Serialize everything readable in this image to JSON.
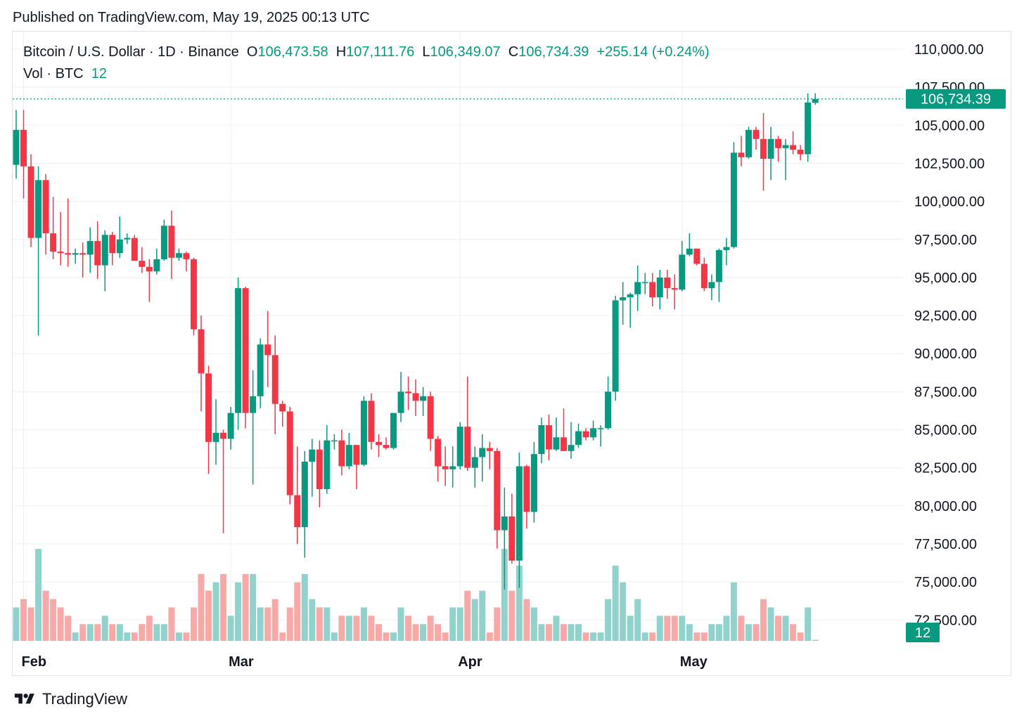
{
  "header": {
    "published": "Published on TradingView.com, May 19, 2025 00:13 UTC"
  },
  "legend": {
    "symbol": "Bitcoin / U.S. Dollar · 1D · Binance",
    "open_label": "O",
    "open": "106,473.58",
    "high_label": "H",
    "high": "107,111.76",
    "low_label": "L",
    "low": "106,349.07",
    "close_label": "C",
    "close": "106,734.39",
    "change": "+255.14 (+0.24%)",
    "vol_label": "Vol · BTC",
    "vol": "12"
  },
  "price_badge": "106,734.39",
  "volume_badge": "12",
  "footer": {
    "brand": "TradingView"
  },
  "colors": {
    "up": "#089981",
    "down": "#f23645",
    "up_vol": "#92d2cc",
    "down_vol": "#f7a9a7",
    "grid": "#eef0f3",
    "axis_text": "#131722"
  },
  "chart_data": {
    "type": "candlestick",
    "ylim": [
      70000,
      110000
    ],
    "y_ticks": [
      "110,000.00",
      "107,500.00",
      "105,000.00",
      "102,500.00",
      "100,000.00",
      "97,500.00",
      "95,000.00",
      "92,500.00",
      "90,000.00",
      "87,500.00",
      "85,000.00",
      "82,500.00",
      "80,000.00",
      "77,500.00",
      "75,000.00",
      "72,500.00"
    ],
    "x_labels": [
      {
        "label": "Feb",
        "date": "2025-02-01"
      },
      {
        "label": "Mar",
        "date": "2025-03-01"
      },
      {
        "label": "Apr",
        "date": "2025-04-01"
      },
      {
        "label": "May",
        "date": "2025-05-01"
      }
    ],
    "last_close": 106734.39,
    "candles": [
      {
        "date": "2025-01-31",
        "o": 102400,
        "h": 106000,
        "l": 101500,
        "c": 104700,
        "v": 4
      },
      {
        "date": "2025-02-01",
        "o": 104700,
        "h": 106000,
        "l": 100200,
        "c": 102300,
        "v": 5
      },
      {
        "date": "2025-02-02",
        "o": 102300,
        "h": 103100,
        "l": 97000,
        "c": 97600,
        "v": 4
      },
      {
        "date": "2025-02-03",
        "o": 97600,
        "h": 102300,
        "l": 91200,
        "c": 101400,
        "v": 11
      },
      {
        "date": "2025-02-04",
        "o": 101400,
        "h": 101800,
        "l": 96500,
        "c": 97900,
        "v": 6
      },
      {
        "date": "2025-02-05",
        "o": 97900,
        "h": 100300,
        "l": 96200,
        "c": 96700,
        "v": 5
      },
      {
        "date": "2025-02-06",
        "o": 96700,
        "h": 99300,
        "l": 95800,
        "c": 96600,
        "v": 4
      },
      {
        "date": "2025-02-07",
        "o": 96600,
        "h": 100200,
        "l": 95700,
        "c": 96500,
        "v": 3
      },
      {
        "date": "2025-02-08",
        "o": 96500,
        "h": 96900,
        "l": 95900,
        "c": 96600,
        "v": 1
      },
      {
        "date": "2025-02-09",
        "o": 96600,
        "h": 97300,
        "l": 95000,
        "c": 96500,
        "v": 2
      },
      {
        "date": "2025-02-10",
        "o": 96500,
        "h": 98300,
        "l": 95300,
        "c": 97400,
        "v": 2
      },
      {
        "date": "2025-02-11",
        "o": 97400,
        "h": 98700,
        "l": 94900,
        "c": 95800,
        "v": 2
      },
      {
        "date": "2025-02-12",
        "o": 95800,
        "h": 98100,
        "l": 94100,
        "c": 97800,
        "v": 3
      },
      {
        "date": "2025-02-13",
        "o": 97800,
        "h": 98000,
        "l": 95800,
        "c": 96600,
        "v": 2
      },
      {
        "date": "2025-02-14",
        "o": 96600,
        "h": 99000,
        "l": 96300,
        "c": 97500,
        "v": 2
      },
      {
        "date": "2025-02-15",
        "o": 97500,
        "h": 97900,
        "l": 97200,
        "c": 97600,
        "v": 1
      },
      {
        "date": "2025-02-16",
        "o": 97600,
        "h": 97800,
        "l": 96100,
        "c": 96100,
        "v": 1
      },
      {
        "date": "2025-02-17",
        "o": 96100,
        "h": 97000,
        "l": 95300,
        "c": 95700,
        "v": 2
      },
      {
        "date": "2025-02-18",
        "o": 95700,
        "h": 96200,
        "l": 93400,
        "c": 95400,
        "v": 3
      },
      {
        "date": "2025-02-19",
        "o": 95400,
        "h": 96900,
        "l": 95200,
        "c": 96200,
        "v": 2
      },
      {
        "date": "2025-02-20",
        "o": 96200,
        "h": 98800,
        "l": 96100,
        "c": 98400,
        "v": 2
      },
      {
        "date": "2025-02-21",
        "o": 98400,
        "h": 99400,
        "l": 94900,
        "c": 96300,
        "v": 4
      },
      {
        "date": "2025-02-22",
        "o": 96300,
        "h": 96900,
        "l": 96100,
        "c": 96600,
        "v": 1
      },
      {
        "date": "2025-02-23",
        "o": 96600,
        "h": 96700,
        "l": 95400,
        "c": 96200,
        "v": 1
      },
      {
        "date": "2025-02-24",
        "o": 96200,
        "h": 96300,
        "l": 91200,
        "c": 91600,
        "v": 4
      },
      {
        "date": "2025-02-25",
        "o": 91600,
        "h": 92500,
        "l": 86200,
        "c": 88700,
        "v": 8
      },
      {
        "date": "2025-02-26",
        "o": 88700,
        "h": 89200,
        "l": 82100,
        "c": 84200,
        "v": 6
      },
      {
        "date": "2025-02-27",
        "o": 84200,
        "h": 87000,
        "l": 82700,
        "c": 84800,
        "v": 7
      },
      {
        "date": "2025-02-28",
        "o": 84800,
        "h": 85000,
        "l": 78200,
        "c": 84400,
        "v": 8
      },
      {
        "date": "2025-03-01",
        "o": 84400,
        "h": 86500,
        "l": 83700,
        "c": 86100,
        "v": 3
      },
      {
        "date": "2025-03-02",
        "o": 86100,
        "h": 95000,
        "l": 85000,
        "c": 94300,
        "v": 7
      },
      {
        "date": "2025-03-03",
        "o": 94300,
        "h": 94400,
        "l": 85100,
        "c": 86100,
        "v": 8
      },
      {
        "date": "2025-03-04",
        "o": 86100,
        "h": 88900,
        "l": 81400,
        "c": 87200,
        "v": 8
      },
      {
        "date": "2025-03-05",
        "o": 87200,
        "h": 91000,
        "l": 86400,
        "c": 90600,
        "v": 4
      },
      {
        "date": "2025-03-06",
        "o": 90600,
        "h": 92800,
        "l": 87800,
        "c": 89900,
        "v": 4
      },
      {
        "date": "2025-03-07",
        "o": 89900,
        "h": 91200,
        "l": 84700,
        "c": 86700,
        "v": 5
      },
      {
        "date": "2025-03-08",
        "o": 86700,
        "h": 86900,
        "l": 85200,
        "c": 86200,
        "v": 1
      },
      {
        "date": "2025-03-09",
        "o": 86200,
        "h": 86500,
        "l": 80100,
        "c": 80700,
        "v": 4
      },
      {
        "date": "2025-03-10",
        "o": 80700,
        "h": 83900,
        "l": 77500,
        "c": 78600,
        "v": 7
      },
      {
        "date": "2025-03-11",
        "o": 78600,
        "h": 83600,
        "l": 76600,
        "c": 82900,
        "v": 8
      },
      {
        "date": "2025-03-12",
        "o": 82900,
        "h": 84400,
        "l": 80600,
        "c": 83700,
        "v": 5
      },
      {
        "date": "2025-03-13",
        "o": 83700,
        "h": 84300,
        "l": 79900,
        "c": 81100,
        "v": 4
      },
      {
        "date": "2025-03-14",
        "o": 81100,
        "h": 85300,
        "l": 80800,
        "c": 84300,
        "v": 4
      },
      {
        "date": "2025-03-15",
        "o": 84300,
        "h": 84700,
        "l": 83700,
        "c": 84300,
        "v": 1
      },
      {
        "date": "2025-03-16",
        "o": 84300,
        "h": 85000,
        "l": 82000,
        "c": 82600,
        "v": 3
      },
      {
        "date": "2025-03-17",
        "o": 82600,
        "h": 84800,
        "l": 82400,
        "c": 84000,
        "v": 3
      },
      {
        "date": "2025-03-18",
        "o": 84000,
        "h": 84000,
        "l": 81100,
        "c": 82700,
        "v": 3
      },
      {
        "date": "2025-03-19",
        "o": 82700,
        "h": 87200,
        "l": 82600,
        "c": 86900,
        "v": 4
      },
      {
        "date": "2025-03-20",
        "o": 86900,
        "h": 87400,
        "l": 83700,
        "c": 84200,
        "v": 3
      },
      {
        "date": "2025-03-21",
        "o": 84200,
        "h": 84700,
        "l": 83200,
        "c": 84000,
        "v": 2
      },
      {
        "date": "2025-03-22",
        "o": 84000,
        "h": 84500,
        "l": 83700,
        "c": 83800,
        "v": 1
      },
      {
        "date": "2025-03-23",
        "o": 83800,
        "h": 86100,
        "l": 83700,
        "c": 86100,
        "v": 1
      },
      {
        "date": "2025-03-24",
        "o": 86100,
        "h": 88800,
        "l": 85500,
        "c": 87500,
        "v": 4
      },
      {
        "date": "2025-03-25",
        "o": 87500,
        "h": 88500,
        "l": 86300,
        "c": 87400,
        "v": 3
      },
      {
        "date": "2025-03-26",
        "o": 87400,
        "h": 88300,
        "l": 85900,
        "c": 86900,
        "v": 2
      },
      {
        "date": "2025-03-27",
        "o": 86900,
        "h": 87800,
        "l": 85900,
        "c": 87200,
        "v": 2
      },
      {
        "date": "2025-03-28",
        "o": 87200,
        "h": 87500,
        "l": 83600,
        "c": 84400,
        "v": 3
      },
      {
        "date": "2025-03-29",
        "o": 84400,
        "h": 84600,
        "l": 81600,
        "c": 82600,
        "v": 2
      },
      {
        "date": "2025-03-30",
        "o": 82600,
        "h": 83900,
        "l": 81300,
        "c": 82400,
        "v": 1
      },
      {
        "date": "2025-03-31",
        "o": 82400,
        "h": 83900,
        "l": 81200,
        "c": 82600,
        "v": 4
      },
      {
        "date": "2025-04-01",
        "o": 82600,
        "h": 85500,
        "l": 82400,
        "c": 85200,
        "v": 4
      },
      {
        "date": "2025-04-02",
        "o": 85200,
        "h": 88500,
        "l": 82300,
        "c": 82500,
        "v": 6
      },
      {
        "date": "2025-04-03",
        "o": 82500,
        "h": 83900,
        "l": 81200,
        "c": 83200,
        "v": 5
      },
      {
        "date": "2025-04-04",
        "o": 83200,
        "h": 84700,
        "l": 81600,
        "c": 83800,
        "v": 6
      },
      {
        "date": "2025-04-05",
        "o": 83800,
        "h": 84200,
        "l": 82400,
        "c": 83600,
        "v": 1
      },
      {
        "date": "2025-04-06",
        "o": 83600,
        "h": 83800,
        "l": 77200,
        "c": 78400,
        "v": 4
      },
      {
        "date": "2025-04-07",
        "o": 78400,
        "h": 81200,
        "l": 74500,
        "c": 79300,
        "v": 11
      },
      {
        "date": "2025-04-08",
        "o": 79300,
        "h": 80800,
        "l": 76200,
        "c": 76400,
        "v": 6
      },
      {
        "date": "2025-04-09",
        "o": 76400,
        "h": 83500,
        "l": 74600,
        "c": 82600,
        "v": 9
      },
      {
        "date": "2025-04-10",
        "o": 82600,
        "h": 82700,
        "l": 78500,
        "c": 79600,
        "v": 5
      },
      {
        "date": "2025-04-11",
        "o": 79600,
        "h": 84200,
        "l": 78900,
        "c": 83400,
        "v": 4
      },
      {
        "date": "2025-04-12",
        "o": 83400,
        "h": 85800,
        "l": 82800,
        "c": 85300,
        "v": 2
      },
      {
        "date": "2025-04-13",
        "o": 85300,
        "h": 86000,
        "l": 83000,
        "c": 83700,
        "v": 2
      },
      {
        "date": "2025-04-14",
        "o": 83700,
        "h": 85800,
        "l": 83600,
        "c": 84500,
        "v": 3
      },
      {
        "date": "2025-04-15",
        "o": 84500,
        "h": 86400,
        "l": 83600,
        "c": 83600,
        "v": 2
      },
      {
        "date": "2025-04-16",
        "o": 83600,
        "h": 85500,
        "l": 83100,
        "c": 84000,
        "v": 2
      },
      {
        "date": "2025-04-17",
        "o": 84000,
        "h": 85400,
        "l": 83800,
        "c": 84900,
        "v": 2
      },
      {
        "date": "2025-04-18",
        "o": 84900,
        "h": 85100,
        "l": 84300,
        "c": 84500,
        "v": 1
      },
      {
        "date": "2025-04-19",
        "o": 84500,
        "h": 85600,
        "l": 84300,
        "c": 85100,
        "v": 1
      },
      {
        "date": "2025-04-20",
        "o": 85100,
        "h": 85300,
        "l": 83900,
        "c": 85100,
        "v": 1
      },
      {
        "date": "2025-04-21",
        "o": 85100,
        "h": 88500,
        "l": 85000,
        "c": 87500,
        "v": 5
      },
      {
        "date": "2025-04-22",
        "o": 87500,
        "h": 93800,
        "l": 86900,
        "c": 93500,
        "v": 9
      },
      {
        "date": "2025-04-23",
        "o": 93500,
        "h": 94700,
        "l": 91900,
        "c": 93700,
        "v": 7
      },
      {
        "date": "2025-04-24",
        "o": 93700,
        "h": 94000,
        "l": 91700,
        "c": 93900,
        "v": 3
      },
      {
        "date": "2025-04-25",
        "o": 93900,
        "h": 95800,
        "l": 92800,
        "c": 94700,
        "v": 5
      },
      {
        "date": "2025-04-26",
        "o": 94700,
        "h": 95300,
        "l": 93900,
        "c": 94700,
        "v": 1
      },
      {
        "date": "2025-04-27",
        "o": 94700,
        "h": 95300,
        "l": 93100,
        "c": 93700,
        "v": 1
      },
      {
        "date": "2025-04-28",
        "o": 93700,
        "h": 95500,
        "l": 92900,
        "c": 95000,
        "v": 3
      },
      {
        "date": "2025-04-29",
        "o": 95000,
        "h": 95500,
        "l": 93600,
        "c": 94300,
        "v": 3
      },
      {
        "date": "2025-04-30",
        "o": 94300,
        "h": 95200,
        "l": 92900,
        "c": 94200,
        "v": 3
      },
      {
        "date": "2025-05-01",
        "o": 94200,
        "h": 97400,
        "l": 94100,
        "c": 96500,
        "v": 3
      },
      {
        "date": "2025-05-02",
        "o": 96500,
        "h": 97900,
        "l": 96400,
        "c": 96900,
        "v": 2
      },
      {
        "date": "2025-05-03",
        "o": 96900,
        "h": 96900,
        "l": 95800,
        "c": 95900,
        "v": 1
      },
      {
        "date": "2025-05-04",
        "o": 95900,
        "h": 96300,
        "l": 94100,
        "c": 94300,
        "v": 1
      },
      {
        "date": "2025-05-05",
        "o": 94300,
        "h": 95200,
        "l": 93500,
        "c": 94700,
        "v": 2
      },
      {
        "date": "2025-05-06",
        "o": 94700,
        "h": 96900,
        "l": 93400,
        "c": 96800,
        "v": 2
      },
      {
        "date": "2025-05-07",
        "o": 96800,
        "h": 97600,
        "l": 95800,
        "c": 97000,
        "v": 3
      },
      {
        "date": "2025-05-08",
        "o": 97000,
        "h": 103900,
        "l": 96900,
        "c": 103200,
        "v": 7
      },
      {
        "date": "2025-05-09",
        "o": 103200,
        "h": 104300,
        "l": 102300,
        "c": 102900,
        "v": 3
      },
      {
        "date": "2025-05-10",
        "o": 102900,
        "h": 104900,
        "l": 102800,
        "c": 104700,
        "v": 2
      },
      {
        "date": "2025-05-11",
        "o": 104700,
        "h": 104900,
        "l": 103400,
        "c": 104100,
        "v": 2
      },
      {
        "date": "2025-05-12",
        "o": 104100,
        "h": 105800,
        "l": 100700,
        "c": 102800,
        "v": 5
      },
      {
        "date": "2025-05-13",
        "o": 102800,
        "h": 104900,
        "l": 101400,
        "c": 104100,
        "v": 4
      },
      {
        "date": "2025-05-14",
        "o": 104100,
        "h": 104300,
        "l": 102600,
        "c": 103500,
        "v": 3
      },
      {
        "date": "2025-05-15",
        "o": 103500,
        "h": 104100,
        "l": 101400,
        "c": 103700,
        "v": 3
      },
      {
        "date": "2025-05-16",
        "o": 103700,
        "h": 104600,
        "l": 103100,
        "c": 103400,
        "v": 2
      },
      {
        "date": "2025-05-17",
        "o": 103400,
        "h": 103700,
        "l": 102700,
        "c": 103100,
        "v": 1
      },
      {
        "date": "2025-05-18",
        "o": 103100,
        "h": 107100,
        "l": 102600,
        "c": 106500,
        "v": 4
      },
      {
        "date": "2025-05-19",
        "o": 106474,
        "h": 107112,
        "l": 106349,
        "c": 106734,
        "v": 0.012
      }
    ]
  }
}
